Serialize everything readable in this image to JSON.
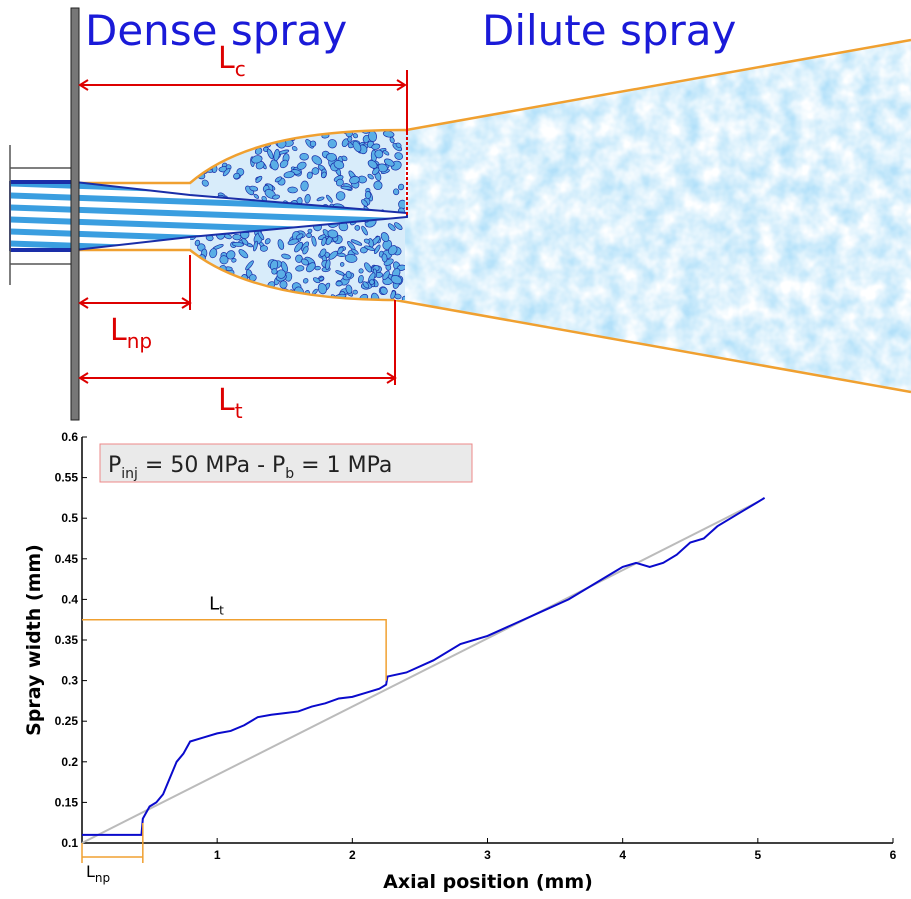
{
  "diagram": {
    "dense": "Dense spray",
    "dilute": "Dilute spray",
    "lc": {
      "main": "L",
      "sub": "c"
    },
    "lnp": {
      "main": "L",
      "sub": "np"
    },
    "lt": {
      "main": "L",
      "sub": "t"
    }
  },
  "chart_data": {
    "type": "line",
    "xlabel": "Axial position (mm)",
    "ylabel": "Spray width (mm)",
    "annotation": {
      "p1": "P",
      "sub1": "inj",
      "mid": " = 50 MPa - P",
      "sub2": "b",
      "end": " = 1 MPa"
    },
    "xlim": [
      0,
      6
    ],
    "xticks": [
      1,
      2,
      3,
      4,
      5,
      6
    ],
    "ylim": [
      0.1,
      0.6
    ],
    "yticks": [
      0.1,
      0.15,
      0.2,
      0.25,
      0.3,
      0.35,
      0.4,
      0.45,
      0.5,
      0.55,
      0.6
    ],
    "series": [
      {
        "color": "#0a0acc",
        "x": [
          0,
          0.44,
          0.45,
          0.5,
          0.55,
          0.6,
          0.65,
          0.7,
          0.75,
          0.8,
          0.9,
          1.0,
          1.1,
          1.2,
          1.3,
          1.4,
          1.5,
          1.6,
          1.7,
          1.8,
          1.9,
          2.0,
          2.1,
          2.2,
          2.25,
          2.26,
          2.4,
          2.6,
          2.8,
          3.0,
          3.2,
          3.4,
          3.6,
          3.8,
          3.9,
          4.0,
          4.1,
          4.2,
          4.3,
          4.4,
          4.5,
          4.6,
          4.7,
          4.8,
          4.9,
          5.0,
          5.05
        ],
        "values": [
          0.11,
          0.11,
          0.13,
          0.145,
          0.15,
          0.16,
          0.18,
          0.2,
          0.21,
          0.225,
          0.23,
          0.235,
          0.238,
          0.245,
          0.255,
          0.258,
          0.26,
          0.262,
          0.268,
          0.272,
          0.278,
          0.28,
          0.285,
          0.29,
          0.295,
          0.305,
          0.31,
          0.325,
          0.345,
          0.355,
          0.37,
          0.385,
          0.4,
          0.42,
          0.43,
          0.44,
          0.445,
          0.44,
          0.445,
          0.455,
          0.47,
          0.475,
          0.49,
          0.5,
          0.51,
          0.52,
          0.525
        ]
      },
      {
        "color": "#bbbbbb",
        "x": [
          0,
          5
        ],
        "values": [
          0.1,
          0.52
        ]
      }
    ],
    "markers": [
      {
        "main": "L",
        "sub": "t",
        "x": 2.25,
        "y": 0.375,
        "color": "#f0a030"
      },
      {
        "main": "L",
        "sub": "np",
        "x": 0.45,
        "color": "#f0a030"
      }
    ]
  }
}
